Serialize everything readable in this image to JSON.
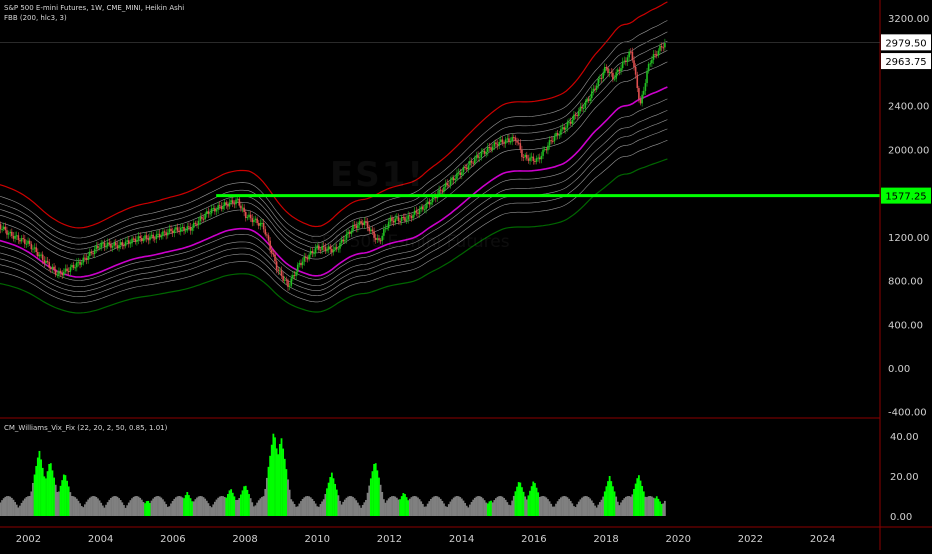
{
  "header": {
    "symbol_line": "S&P 500 E-mini Futures, 1W, CME_MINI, Heikin Ashi",
    "indicator_line": "FBB (200, hlc3, 3)",
    "lower_indicator": "CM_Williams_Vix_Fix (22, 20, 2, 50, 0.85, 1.01)",
    "watermark": "ES1!",
    "watermark_sub": "S&P 500 E-mini Futures"
  },
  "price_axis": {
    "labels": [
      "3200.00",
      "2400.00",
      "2000.00",
      "1200.00",
      "800.00",
      "400.00",
      "0.00",
      "-400.00"
    ],
    "badges": [
      {
        "text": "2979.50",
        "bg": "#ffffff",
        "fg": "#000000"
      },
      {
        "text": "2963.75",
        "bg": "#ffffff",
        "fg": "#000000"
      },
      {
        "text": "1577.25",
        "bg": "#00ff00",
        "fg": "#000000"
      }
    ]
  },
  "lower_axis": {
    "labels": [
      "40.00",
      "20.00",
      "0.00"
    ]
  },
  "time_axis": {
    "labels": [
      "2002",
      "2004",
      "2006",
      "2008",
      "2010",
      "2012",
      "2014",
      "2016",
      "2018",
      "2020",
      "2022",
      "2024"
    ]
  },
  "colors": {
    "background": "#000000",
    "upper_band": "#cc0000",
    "lower_band": "#006600",
    "basis": "#cc00cc",
    "inner_bands": "#c8c8c8",
    "horizontal_line": "#00ff00",
    "candle_up": "#22c022",
    "candle_down": "#e05050",
    "vix_normal": "#808080",
    "vix_spike": "#00ff00",
    "separator": "#8b0000"
  },
  "chart_data": {
    "type": "line",
    "title": "S&P 500 E-mini Futures, 1W, CME_MINI, Heikin Ashi",
    "x": [
      2001.0,
      2001.5,
      2002.0,
      2002.5,
      2002.8,
      2003.0,
      2003.5,
      2004.0,
      2004.5,
      2005.0,
      2005.5,
      2006.0,
      2006.5,
      2007.0,
      2007.5,
      2007.8,
      2008.0,
      2008.5,
      2008.9,
      2009.2,
      2009.5,
      2010.0,
      2010.5,
      2011.0,
      2011.3,
      2011.7,
      2012.0,
      2012.5,
      2013.0,
      2013.5,
      2014.0,
      2014.5,
      2015.0,
      2015.5,
      2015.7,
      2016.1,
      2016.5,
      2017.0,
      2017.5,
      2018.0,
      2018.2,
      2018.7,
      2018.95,
      2019.2,
      2019.6
    ],
    "series": [
      {
        "values": [
          1350,
          1220,
          1140,
          960,
          860,
          880,
          980,
          1130,
          1120,
          1180,
          1200,
          1260,
          1280,
          1430,
          1500,
          1530,
          1400,
          1300,
          900,
          750,
          950,
          1100,
          1080,
          1290,
          1340,
          1150,
          1350,
          1370,
          1480,
          1650,
          1800,
          1950,
          2060,
          2100,
          1930,
          1900,
          2090,
          2250,
          2450,
          2750,
          2650,
          2900,
          2400,
          2800,
          2963.75
        ]
      }
    ],
    "ylim": [
      -400,
      3400
    ],
    "horizontal_line": 1577.25,
    "last_values": [
      2979.5,
      2963.75
    ]
  }
}
